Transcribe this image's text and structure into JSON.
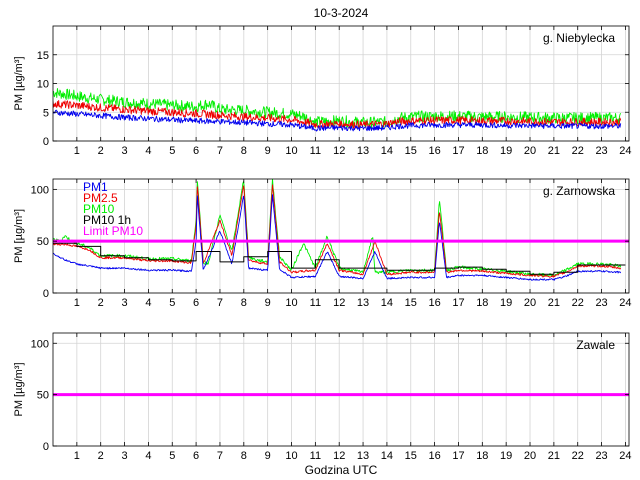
{
  "title": "10-3-2024",
  "xlabel": "Godzina UTC",
  "chart_data": [
    {
      "type": "line",
      "station": "g. Niebylecka",
      "ylabel": "PM [µg/m³]",
      "ylim": [
        0,
        20
      ],
      "yticks": [
        0,
        5,
        10,
        15
      ],
      "xlim": [
        0,
        24.15
      ],
      "xticks": [
        1,
        2,
        3,
        4,
        5,
        6,
        7,
        8,
        9,
        10,
        11,
        12,
        13,
        14,
        15,
        16,
        17,
        18,
        19,
        20,
        21,
        22,
        23,
        24
      ],
      "grid": true,
      "legend": [],
      "series": [
        {
          "name": "PM10",
          "color": "#00ee00",
          "noise": 1.0,
          "x": [
            0,
            1,
            2,
            3,
            4,
            5,
            6,
            6.5,
            7,
            8,
            9,
            10,
            10.5,
            11,
            12,
            13,
            14,
            14.5,
            15,
            16,
            17,
            18,
            19,
            20,
            21,
            22,
            23,
            23.8
          ],
          "y": [
            8.5,
            7.8,
            7.2,
            6.8,
            6.5,
            6.2,
            6.0,
            6.5,
            5.5,
            5.3,
            5.0,
            4.7,
            4.3,
            3.3,
            3.5,
            3.2,
            3.3,
            4.0,
            4.2,
            4.3,
            4.3,
            4.2,
            4.2,
            4.1,
            4.0,
            4.0,
            4.0,
            4.0
          ]
        },
        {
          "name": "PM2.5",
          "color": "#ee0000",
          "noise": 0.7,
          "x": [
            0,
            1,
            2,
            3,
            4,
            5,
            6,
            7,
            8,
            9,
            10,
            11,
            12,
            13,
            14,
            14.5,
            15,
            16,
            17,
            18,
            19,
            20,
            21,
            22,
            23,
            23.8
          ],
          "y": [
            6.5,
            6.2,
            5.8,
            5.5,
            5.2,
            5.0,
            4.8,
            4.5,
            4.2,
            4.0,
            3.7,
            2.9,
            3.0,
            2.8,
            3.0,
            3.4,
            3.5,
            3.6,
            3.6,
            3.5,
            3.5,
            3.4,
            3.3,
            3.3,
            3.3,
            3.3
          ]
        },
        {
          "name": "PM1",
          "color": "#0000ee",
          "noise": 0.5,
          "x": [
            0,
            1,
            2,
            3,
            4,
            5,
            6,
            7,
            8,
            9,
            10,
            11,
            12,
            13,
            14,
            14.5,
            15,
            16,
            17,
            18,
            19,
            20,
            21,
            22,
            23,
            23.8
          ],
          "y": [
            5.0,
            4.7,
            4.4,
            4.1,
            3.9,
            3.7,
            3.5,
            3.4,
            3.2,
            3.0,
            2.8,
            2.2,
            2.3,
            2.2,
            2.3,
            2.6,
            2.7,
            2.8,
            2.8,
            2.8,
            2.7,
            2.7,
            2.6,
            2.6,
            2.6,
            2.6
          ]
        }
      ],
      "hlines": []
    },
    {
      "type": "line",
      "station": "g. Zarnowska",
      "ylabel": "PM [µg/m³]",
      "ylim": [
        0,
        110
      ],
      "yticks": [
        0,
        50,
        100
      ],
      "xlim": [
        0,
        24.15
      ],
      "xticks": [
        1,
        2,
        3,
        4,
        5,
        6,
        7,
        8,
        9,
        10,
        11,
        12,
        13,
        14,
        15,
        16,
        17,
        18,
        19,
        20,
        21,
        22,
        23,
        24
      ],
      "grid": true,
      "legend": [
        {
          "label": "PM1",
          "color": "#0000ee"
        },
        {
          "label": "PM2.5",
          "color": "#ee0000"
        },
        {
          "label": "PM10",
          "color": "#00ee00"
        },
        {
          "label": "PM10 1h",
          "color": "#000000"
        },
        {
          "label": "Limit PM10",
          "color": "#ff00ff"
        }
      ],
      "series": [
        {
          "name": "PM10",
          "color": "#00ee00",
          "noise": 1.5,
          "x": [
            0,
            0.3,
            0.5,
            0.8,
            1,
            1.5,
            2,
            3,
            4,
            5,
            5.8,
            6,
            6.05,
            6.3,
            6.5,
            7,
            7.5,
            8,
            8.2,
            8.5,
            9,
            9.2,
            9.5,
            10,
            10.5,
            11,
            11.5,
            12,
            12.5,
            13,
            13.4,
            13.5,
            14,
            15,
            16,
            16.2,
            16.5,
            17,
            18,
            19,
            20,
            21,
            21.5,
            22,
            23,
            23.8
          ],
          "y": [
            52,
            50,
            55,
            50,
            48,
            44,
            36,
            36,
            33,
            33,
            31,
            70,
            110,
            30,
            28,
            75,
            40,
            110,
            35,
            32,
            30,
            110,
            35,
            22,
            48,
            24,
            55,
            24,
            22,
            20,
            55,
            20,
            20,
            22,
            22,
            90,
            22,
            25,
            23,
            21,
            18,
            17,
            22,
            28,
            28,
            26
          ]
        },
        {
          "name": "PM2.5",
          "color": "#ee0000",
          "noise": 1.0,
          "x": [
            0,
            0.5,
            1,
            1.5,
            2,
            3,
            4,
            5,
            5.8,
            6,
            6.05,
            6.3,
            7,
            7.5,
            8,
            8.2,
            8.5,
            9,
            9.2,
            9.5,
            10,
            11,
            11.5,
            12,
            13,
            13.5,
            14,
            15,
            16,
            16.2,
            16.5,
            17,
            18,
            19,
            20,
            21,
            21.5,
            22,
            23,
            23.8
          ],
          "y": [
            47,
            47,
            45,
            42,
            34,
            34,
            31,
            31,
            29,
            65,
            105,
            28,
            70,
            36,
            105,
            32,
            30,
            28,
            105,
            30,
            20,
            22,
            48,
            22,
            18,
            50,
            18,
            20,
            20,
            80,
            20,
            22,
            21,
            19,
            17,
            16,
            20,
            26,
            26,
            24
          ]
        },
        {
          "name": "PM1",
          "color": "#0000ee",
          "noise": 0.8,
          "x": [
            0,
            0.5,
            1,
            1.5,
            2,
            3,
            4,
            5,
            5.8,
            6,
            6.05,
            6.3,
            7,
            7.5,
            8,
            8.2,
            8.5,
            9,
            9.2,
            9.5,
            10,
            11,
            11.5,
            12,
            13,
            13.5,
            14,
            15,
            16,
            16.2,
            16.5,
            17,
            18,
            19,
            20,
            21,
            21.5,
            22,
            23,
            23.8
          ],
          "y": [
            38,
            32,
            28,
            26,
            24,
            24,
            22,
            22,
            21,
            50,
            95,
            22,
            60,
            28,
            95,
            24,
            23,
            22,
            95,
            23,
            15,
            16,
            40,
            16,
            14,
            40,
            14,
            15,
            15,
            70,
            15,
            17,
            17,
            15,
            13,
            13,
            16,
            21,
            21,
            20
          ]
        },
        {
          "name": "PM10 1h",
          "color": "#000000",
          "step": true,
          "x": [
            0,
            1,
            2,
            3,
            4,
            5,
            6,
            7,
            8,
            9,
            10,
            11,
            12,
            13,
            14,
            15,
            16,
            17,
            18,
            19,
            20,
            21,
            22,
            23,
            24
          ],
          "y": [
            48,
            45,
            36,
            34,
            32,
            31,
            40,
            30,
            35,
            40,
            24,
            32,
            24,
            24,
            22,
            22,
            24,
            25,
            23,
            21,
            18,
            20,
            27,
            27,
            27
          ]
        }
      ],
      "hlines": [
        {
          "name": "Limit PM10",
          "value": 50,
          "color": "#ff00ff"
        }
      ]
    },
    {
      "type": "line",
      "station": "Zawale",
      "ylabel": "PM [µg/m³]",
      "ylim": [
        0,
        110
      ],
      "yticks": [
        0,
        50,
        100
      ],
      "xlim": [
        0,
        24.15
      ],
      "xticks": [
        1,
        2,
        3,
        4,
        5,
        6,
        7,
        8,
        9,
        10,
        11,
        12,
        13,
        14,
        15,
        16,
        17,
        18,
        19,
        20,
        21,
        22,
        23,
        24
      ],
      "grid": true,
      "legend": [],
      "series": [],
      "hlines": [
        {
          "name": "Limit PM10",
          "value": 50,
          "color": "#ff00ff"
        }
      ]
    }
  ]
}
